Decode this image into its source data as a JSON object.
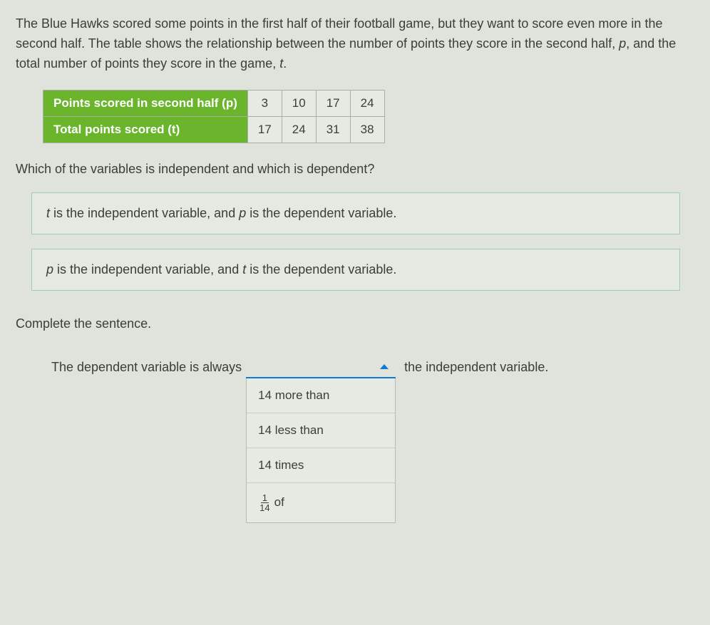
{
  "intro": {
    "part1": "The Blue Hawks scored some points in the first half of their football game, but they want to score even more in the second half. The table shows the relationship between the number of points they score in the second half, ",
    "var1": "p",
    "part2": ", and the total number of points they score in the game, ",
    "var2": "t",
    "part3": "."
  },
  "table": {
    "row1_label": "Points scored in second half (p)",
    "row2_label": "Total points scored (t)",
    "p_values": [
      "3",
      "10",
      "17",
      "24"
    ],
    "t_values": [
      "17",
      "24",
      "31",
      "38"
    ],
    "header_bg": "#6ab52c",
    "header_text": "#ffffff",
    "cell_bg": "#e7e9e3",
    "border": "#a7b0a6"
  },
  "question": "Which of the variables is independent and which is dependent?",
  "answers": [
    {
      "v1": "t",
      "mid": " is the independent variable, and ",
      "v2": "p",
      "end": " is the dependent variable."
    },
    {
      "v1": "p",
      "mid": " is the independent variable, and ",
      "v2": "t",
      "end": " is the dependent variable."
    }
  ],
  "complete_label": "Complete the sentence.",
  "sentence": {
    "left": "The dependent variable is always",
    "right": "the independent variable."
  },
  "dropdown": {
    "accent": "#0a7cd4",
    "options": {
      "opt1": "14 more than",
      "opt2": "14 less than",
      "opt3": "14 times",
      "opt4_num": "1",
      "opt4_den": "14",
      "opt4_suffix": " of"
    }
  },
  "colors": {
    "page_bg": "#e0e3dc",
    "text": "#3a3e3a",
    "answer_border": "#9fc8c6"
  }
}
